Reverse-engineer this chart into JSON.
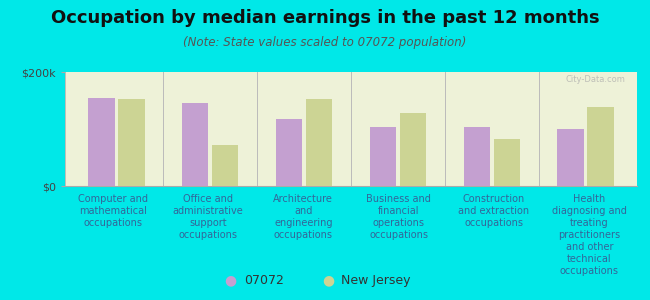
{
  "title": "Occupation by median earnings in the past 12 months",
  "subtitle": "(Note: State values scaled to 07072 population)",
  "background_color": "#00e8e8",
  "plot_bg_color": "#eef2d8",
  "categories": [
    "Computer and\nmathematical\noccupations",
    "Office and\nadministrative\nsupport\noccupations",
    "Architecture\nand\nengineering\noccupations",
    "Business and\nfinancial\noperations\noccupations",
    "Construction\nand extraction\noccupations",
    "Health\ndiagnosing and\ntreating\npractitioners\nand other\ntechnical\noccupations"
  ],
  "values_07072": [
    155000,
    145000,
    118000,
    103000,
    103000,
    100000
  ],
  "values_nj": [
    153000,
    72000,
    153000,
    128000,
    82000,
    138000
  ],
  "color_07072": "#c4a0d0",
  "color_nj": "#ccd494",
  "ylim": [
    0,
    200000
  ],
  "ytick_labels": [
    "$0",
    "$200k"
  ],
  "legend_07072": "07072",
  "legend_nj": "New Jersey",
  "ylabel_fontsize": 8,
  "title_fontsize": 13,
  "subtitle_fontsize": 8.5,
  "tick_label_fontsize": 7,
  "legend_fontsize": 9,
  "watermark": "City-Data.com"
}
